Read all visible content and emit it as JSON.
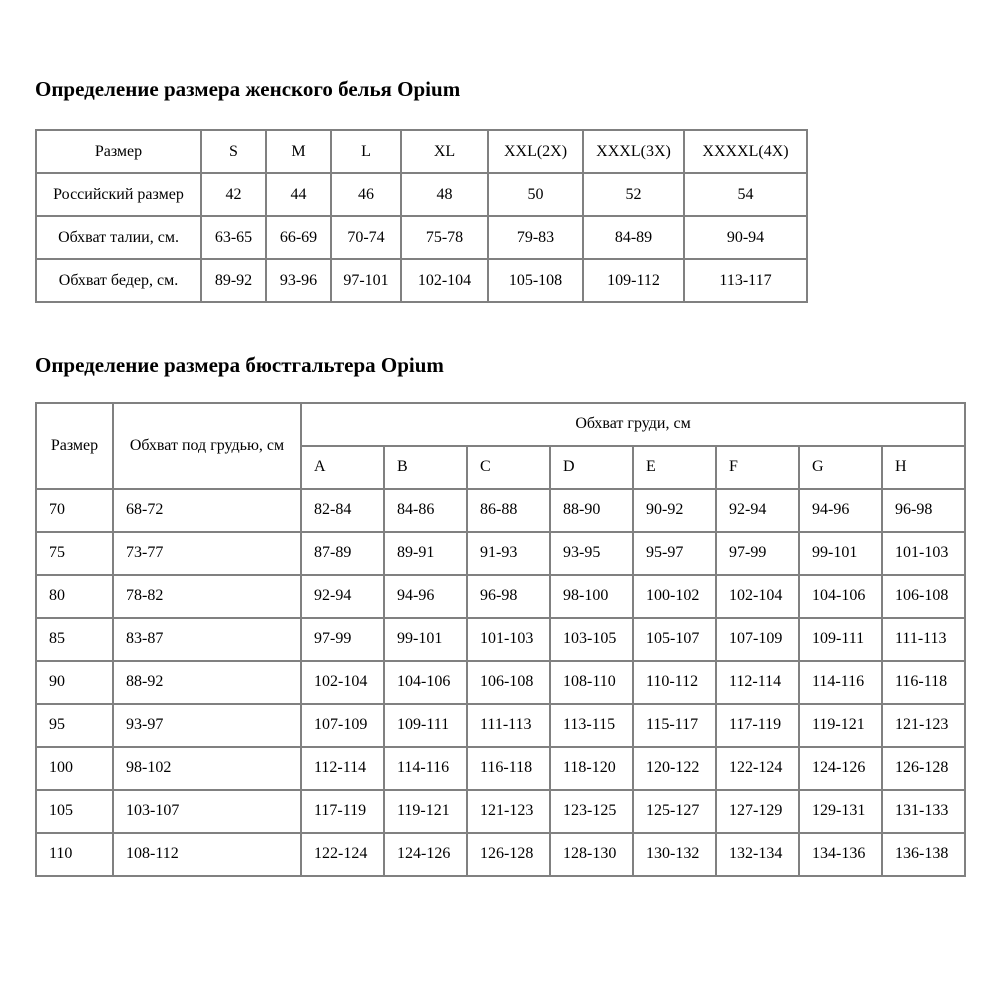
{
  "page": {
    "background_color": "#ffffff",
    "text_color": "#000000",
    "border_color": "#808080"
  },
  "underwear_table": {
    "title": "Определение размера женского белья Opium",
    "header": [
      "Размер",
      "S",
      "M",
      "L",
      "XL",
      "XXL(2X)",
      "XXXL(3X)",
      "XXXXL(4X)"
    ],
    "rows": [
      [
        "Российский размер",
        "42",
        "44",
        "46",
        "48",
        "50",
        "52",
        "54"
      ],
      [
        "Обхват талии, см.",
        "63-65",
        "66-69",
        "70-74",
        "75-78",
        "79-83",
        "84-89",
        "90-94"
      ],
      [
        "Обхват бедер, см.",
        "89-92",
        "93-96",
        "97-101",
        "102-104",
        "105-108",
        "109-112",
        "113-117"
      ]
    ]
  },
  "bra_table": {
    "title": "Определение размера бюстгальтера Opium",
    "size_header": "Размер",
    "underbust_header": "Обхват под грудью, см",
    "bust_header": "Обхват груди, см",
    "cup_headers": [
      "A",
      "B",
      "C",
      "D",
      "E",
      "F",
      "G",
      "H"
    ],
    "rows": [
      {
        "size": "70",
        "underbust": "68-72",
        "cups": [
          "82-84",
          "84-86",
          "86-88",
          "88-90",
          "90-92",
          "92-94",
          "94-96",
          "96-98"
        ]
      },
      {
        "size": "75",
        "underbust": "73-77",
        "cups": [
          "87-89",
          "89-91",
          "91-93",
          "93-95",
          "95-97",
          "97-99",
          "99-101",
          "101-103"
        ]
      },
      {
        "size": "80",
        "underbust": "78-82",
        "cups": [
          "92-94",
          "94-96",
          "96-98",
          "98-100",
          "100-102",
          "102-104",
          "104-106",
          "106-108"
        ]
      },
      {
        "size": "85",
        "underbust": "83-87",
        "cups": [
          "97-99",
          "99-101",
          "101-103",
          "103-105",
          "105-107",
          "107-109",
          "109-111",
          "111-113"
        ]
      },
      {
        "size": "90",
        "underbust": "88-92",
        "cups": [
          "102-104",
          "104-106",
          "106-108",
          "108-110",
          "110-112",
          "112-114",
          "114-116",
          "116-118"
        ]
      },
      {
        "size": "95",
        "underbust": "93-97",
        "cups": [
          "107-109",
          "109-111",
          "111-113",
          "113-115",
          "115-117",
          "117-119",
          "119-121",
          "121-123"
        ]
      },
      {
        "size": "100",
        "underbust": "98-102",
        "cups": [
          "112-114",
          "114-116",
          "116-118",
          "118-120",
          "120-122",
          "122-124",
          "124-126",
          "126-128"
        ]
      },
      {
        "size": "105",
        "underbust": "103-107",
        "cups": [
          "117-119",
          "119-121",
          "121-123",
          "123-125",
          "125-127",
          "127-129",
          "129-131",
          "131-133"
        ]
      },
      {
        "size": "110",
        "underbust": "108-112",
        "cups": [
          "122-124",
          "124-126",
          "126-128",
          "128-130",
          "130-132",
          "132-134",
          "134-136",
          "136-138"
        ]
      }
    ]
  }
}
